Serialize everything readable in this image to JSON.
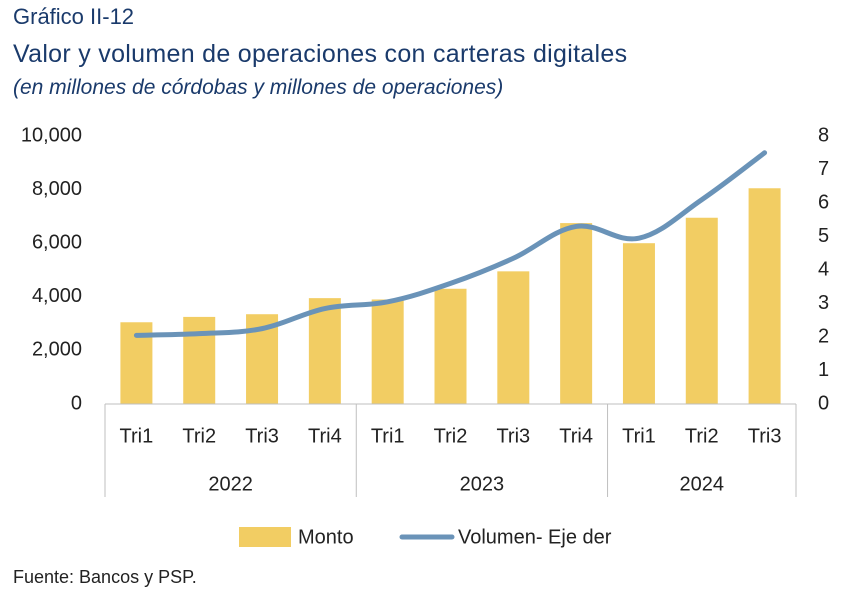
{
  "header": {
    "figure_label": "Gráfico II-12",
    "title": "Valor y volumen de operaciones con carteras digitales",
    "subtitle": "(en millones de córdobas y millones de operaciones)"
  },
  "footer": {
    "source": "Fuente: Bancos y PSP."
  },
  "colors": {
    "bar": "#f2cd63",
    "line": "#6a93b8",
    "title": "#1a3a6b",
    "axis": "#bfbfbf"
  },
  "chart_data": {
    "type": "bar+line",
    "categories": [
      "Tri1",
      "Tri2",
      "Tri3",
      "Tri4",
      "Tri1",
      "Tri2",
      "Tri3",
      "Tri4",
      "Tri1",
      "Tri2",
      "Tri3"
    ],
    "groups": [
      {
        "label": "2022",
        "count": 4
      },
      {
        "label": "2023",
        "count": 4
      },
      {
        "label": "2024",
        "count": 3
      }
    ],
    "series": [
      {
        "name": "Monto",
        "type": "bar",
        "axis": "left",
        "values": [
          3050,
          3250,
          3350,
          3950,
          3900,
          4300,
          4950,
          6750,
          6000,
          6950,
          8050
        ]
      },
      {
        "name": "Volumen- Eje der",
        "type": "line",
        "axis": "right",
        "values": [
          2.05,
          2.1,
          2.25,
          2.85,
          3.05,
          3.6,
          4.35,
          5.3,
          4.95,
          6.1,
          7.5
        ]
      }
    ],
    "y_left": {
      "min": 0,
      "max": 10000,
      "ticks": [
        "0",
        "2,000",
        "4,000",
        "6,000",
        "8,000",
        "10,000"
      ]
    },
    "y_right": {
      "min": 0,
      "max": 8,
      "ticks": [
        "0",
        "1",
        "2",
        "3",
        "4",
        "5",
        "6",
        "7",
        "8"
      ]
    },
    "legend_position": "bottom-center",
    "grid": false
  }
}
